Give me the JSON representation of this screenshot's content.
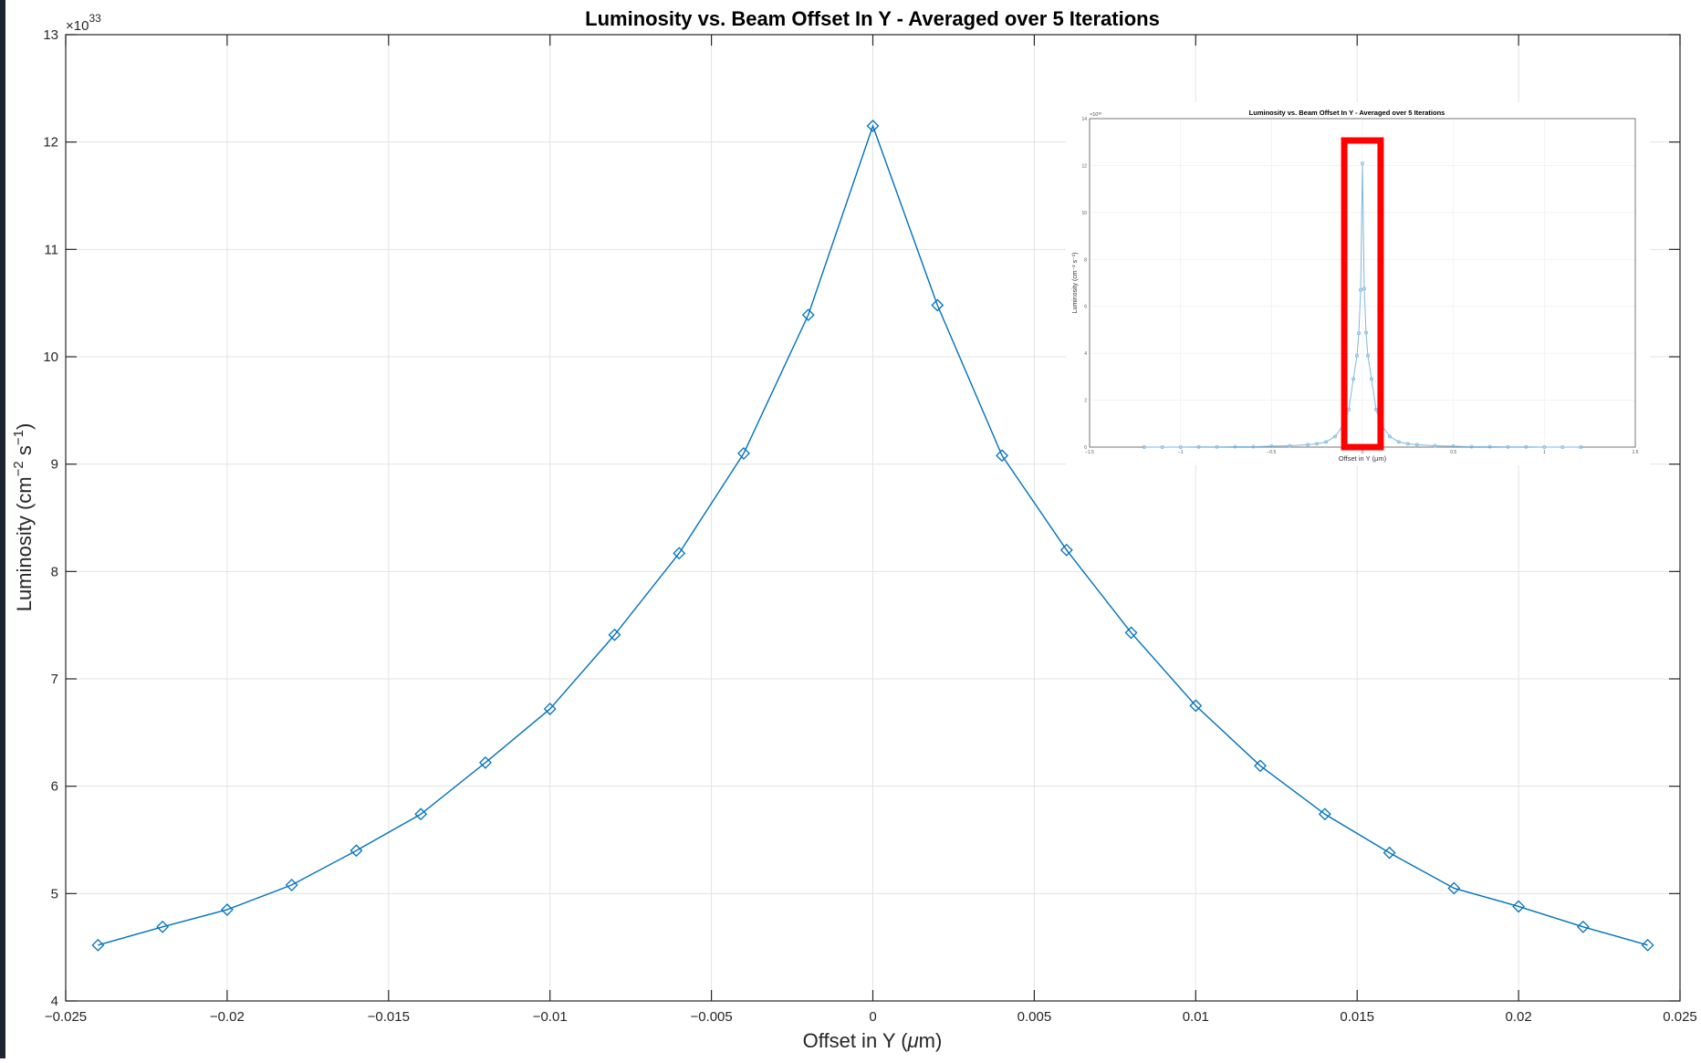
{
  "chart_data": [
    {
      "type": "line",
      "title": "Luminosity vs. Beam Offset In Y - Averaged over 5 Iterations",
      "xlabel": "Offset in Y (",
      "xlabel_symbol": "μ",
      "xlabel_unit": "m)",
      "ylabel": "Luminosity (cm",
      "ylabel_exp1": "−2",
      "ylabel_mid": " s",
      "ylabel_exp2": "−1",
      "ylabel_end": ")",
      "exponent_prefix": "×10",
      "exponent_power": "33",
      "xlim": [
        -0.025,
        0.025
      ],
      "ylim": [
        4,
        13
      ],
      "x_ticks": [
        -0.025,
        -0.02,
        -0.015,
        -0.01,
        -0.005,
        0,
        0.005,
        0.01,
        0.015,
        0.02,
        0.025
      ],
      "x_tick_labels": [
        "−0.025",
        "−0.02",
        "−0.015",
        "−0.01",
        "−0.005",
        "0",
        "0.005",
        "0.01",
        "0.015",
        "0.02",
        "0.025"
      ],
      "y_ticks": [
        4,
        5,
        6,
        7,
        8,
        9,
        10,
        11,
        12,
        13
      ],
      "y_tick_labels": [
        "4",
        "5",
        "6",
        "7",
        "8",
        "9",
        "10",
        "11",
        "12",
        "13"
      ],
      "grid": true,
      "marker": "diamond",
      "color": "#0072bd",
      "x": [
        -0.024,
        -0.022,
        -0.02,
        -0.018,
        -0.016,
        -0.014,
        -0.012,
        -0.01,
        -0.008,
        -0.006,
        -0.004,
        -0.002,
        0,
        0.002,
        0.004,
        0.006,
        0.008,
        0.01,
        0.012,
        0.014,
        0.016,
        0.018,
        0.02,
        0.022,
        0.024
      ],
      "y": [
        4.52,
        4.69,
        4.85,
        5.08,
        5.4,
        5.74,
        6.22,
        6.72,
        7.41,
        8.17,
        9.1,
        10.39,
        12.15,
        10.48,
        9.08,
        8.2,
        7.43,
        6.75,
        6.19,
        5.74,
        5.38,
        5.05,
        4.88,
        4.69,
        4.52
      ]
    },
    {
      "type": "line",
      "role": "inset",
      "title": "Luminosity vs. Beam Offset In Y - Averaged over 5 Iterations",
      "xlabel": "Offset in Y (μm)",
      "ylabel": "Luminosity (cm⁻² s⁻¹)",
      "exponent_label": "×10³³",
      "xlim": [
        -1.5,
        1.5
      ],
      "ylim": [
        0,
        14
      ],
      "x_ticks": [
        -1.5,
        -1,
        -0.5,
        0,
        0.5,
        1,
        1.5
      ],
      "x_tick_labels": [
        "−1.5",
        "−1",
        "−0.5",
        "0",
        "0.5",
        "1",
        "1.5"
      ],
      "y_ticks": [
        0,
        2,
        4,
        6,
        8,
        10,
        12,
        14
      ],
      "y_tick_labels": [
        "0",
        "2",
        "4",
        "6",
        "8",
        "10",
        "12",
        "14"
      ],
      "grid": true,
      "color": "#7fb8e0",
      "highlight_color": "#ff0000",
      "highlight_x_range": [
        -0.1,
        0.1
      ],
      "x": [
        -1.2,
        -1.1,
        -1.0,
        -0.9,
        -0.8,
        -0.7,
        -0.6,
        -0.5,
        -0.4,
        -0.3,
        -0.25,
        -0.2,
        -0.15,
        -0.1,
        -0.075,
        -0.05,
        -0.03,
        -0.02,
        -0.01,
        0,
        0.01,
        0.02,
        0.03,
        0.05,
        0.075,
        0.1,
        0.15,
        0.2,
        0.25,
        0.3,
        0.4,
        0.5,
        0.6,
        0.7,
        0.8,
        0.9,
        1.0,
        1.1,
        1.2
      ],
      "y": [
        0.0,
        0.0,
        0.0,
        0.01,
        0.01,
        0.02,
        0.02,
        0.04,
        0.06,
        0.1,
        0.14,
        0.22,
        0.45,
        1.0,
        1.6,
        2.9,
        3.9,
        4.85,
        6.7,
        12.1,
        6.75,
        4.88,
        3.9,
        2.9,
        1.6,
        1.0,
        0.45,
        0.22,
        0.14,
        0.1,
        0.06,
        0.04,
        0.02,
        0.02,
        0.01,
        0.01,
        0.0,
        0.0,
        0.0
      ]
    }
  ]
}
